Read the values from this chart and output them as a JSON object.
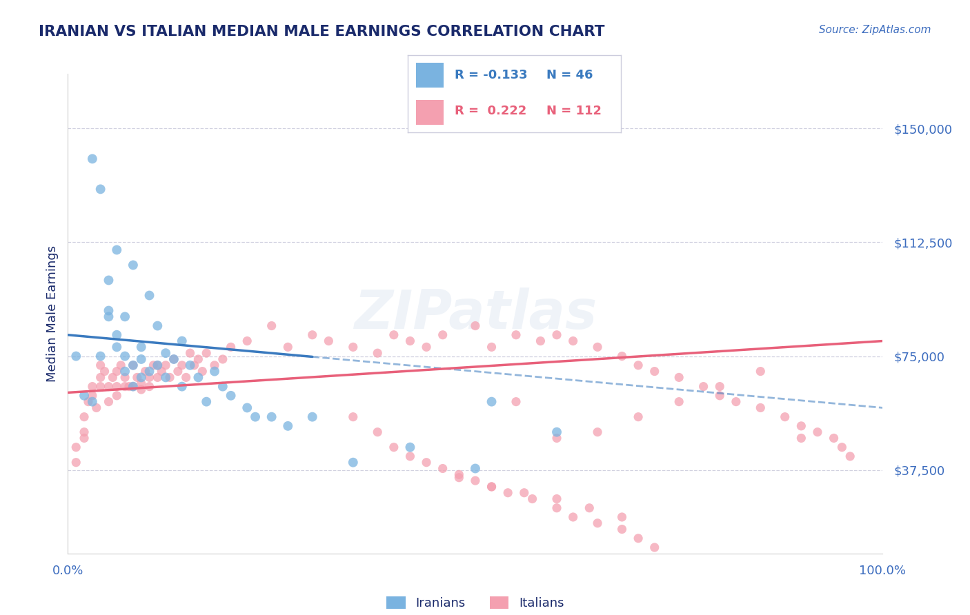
{
  "title": "IRANIAN VS ITALIAN MEDIAN MALE EARNINGS CORRELATION CHART",
  "source_text": "Source: ZipAtlas.com",
  "ylabel": "Median Male Earnings",
  "yticks": [
    37500,
    75000,
    112500,
    150000
  ],
  "ytick_labels": [
    "$37,500",
    "$75,000",
    "$112,500",
    "$150,000"
  ],
  "ylim": [
    10000,
    168000
  ],
  "xlim": [
    0.0,
    1.0
  ],
  "watermark": "ZIPatlas",
  "legend_iranian_r": "-0.133",
  "legend_iranian_n": "46",
  "legend_italian_r": "0.222",
  "legend_italian_n": "112",
  "legend_label_iranian": "Iranians",
  "legend_label_italian": "Italians",
  "color_iranian": "#7ab3e0",
  "color_italian": "#f4a0b0",
  "color_trend_iranian": "#3a7abf",
  "color_trend_italian": "#e8607a",
  "color_title": "#1a2a6b",
  "color_ytick": "#3d6dbf",
  "background_color": "#ffffff",
  "grid_color": "#ccccdd",
  "iranians_x": [
    0.01,
    0.02,
    0.03,
    0.03,
    0.04,
    0.04,
    0.05,
    0.05,
    0.05,
    0.06,
    0.06,
    0.06,
    0.07,
    0.07,
    0.07,
    0.08,
    0.08,
    0.08,
    0.09,
    0.09,
    0.09,
    0.1,
    0.1,
    0.11,
    0.11,
    0.12,
    0.12,
    0.13,
    0.14,
    0.14,
    0.15,
    0.16,
    0.17,
    0.18,
    0.19,
    0.2,
    0.22,
    0.23,
    0.25,
    0.27,
    0.3,
    0.35,
    0.42,
    0.5,
    0.52,
    0.6
  ],
  "iranians_y": [
    75000,
    62000,
    140000,
    60000,
    75000,
    130000,
    88000,
    90000,
    100000,
    78000,
    82000,
    110000,
    70000,
    75000,
    88000,
    65000,
    72000,
    105000,
    68000,
    74000,
    78000,
    70000,
    95000,
    72000,
    85000,
    68000,
    76000,
    74000,
    80000,
    65000,
    72000,
    68000,
    60000,
    70000,
    65000,
    62000,
    58000,
    55000,
    55000,
    52000,
    55000,
    40000,
    45000,
    38000,
    60000,
    50000
  ],
  "italians_x": [
    0.01,
    0.01,
    0.02,
    0.02,
    0.02,
    0.025,
    0.03,
    0.03,
    0.035,
    0.04,
    0.04,
    0.04,
    0.045,
    0.05,
    0.05,
    0.055,
    0.06,
    0.06,
    0.06,
    0.065,
    0.07,
    0.07,
    0.075,
    0.08,
    0.08,
    0.085,
    0.09,
    0.09,
    0.095,
    0.1,
    0.1,
    0.105,
    0.11,
    0.11,
    0.115,
    0.12,
    0.125,
    0.13,
    0.135,
    0.14,
    0.145,
    0.15,
    0.155,
    0.16,
    0.165,
    0.17,
    0.18,
    0.19,
    0.2,
    0.22,
    0.25,
    0.27,
    0.3,
    0.32,
    0.35,
    0.38,
    0.4,
    0.42,
    0.44,
    0.46,
    0.5,
    0.52,
    0.55,
    0.58,
    0.6,
    0.62,
    0.65,
    0.68,
    0.7,
    0.72,
    0.75,
    0.78,
    0.8,
    0.82,
    0.85,
    0.88,
    0.9,
    0.92,
    0.94,
    0.96,
    0.35,
    0.38,
    0.4,
    0.42,
    0.44,
    0.46,
    0.48,
    0.5,
    0.52,
    0.54,
    0.57,
    0.6,
    0.62,
    0.65,
    0.68,
    0.7,
    0.72,
    0.6,
    0.65,
    0.7,
    0.75,
    0.8,
    0.85,
    0.9,
    0.95,
    0.55,
    0.48,
    0.52,
    0.56,
    0.6,
    0.64,
    0.68
  ],
  "italians_y": [
    45000,
    40000,
    55000,
    50000,
    48000,
    60000,
    65000,
    62000,
    58000,
    68000,
    72000,
    65000,
    70000,
    60000,
    65000,
    68000,
    62000,
    65000,
    70000,
    72000,
    65000,
    68000,
    65000,
    72000,
    65000,
    68000,
    64000,
    66000,
    70000,
    65000,
    68000,
    72000,
    68000,
    72000,
    70000,
    72000,
    68000,
    74000,
    70000,
    72000,
    68000,
    76000,
    72000,
    74000,
    70000,
    76000,
    72000,
    74000,
    78000,
    80000,
    85000,
    78000,
    82000,
    80000,
    78000,
    76000,
    82000,
    80000,
    78000,
    82000,
    85000,
    78000,
    82000,
    80000,
    82000,
    80000,
    78000,
    75000,
    72000,
    70000,
    68000,
    65000,
    62000,
    60000,
    58000,
    55000,
    52000,
    50000,
    48000,
    42000,
    55000,
    50000,
    45000,
    42000,
    40000,
    38000,
    36000,
    34000,
    32000,
    30000,
    28000,
    25000,
    22000,
    20000,
    18000,
    15000,
    12000,
    48000,
    50000,
    55000,
    60000,
    65000,
    70000,
    48000,
    45000,
    60000,
    35000,
    32000,
    30000,
    28000,
    25000,
    22000
  ],
  "trend_iran_y0": 82000,
  "trend_iran_y1": 58000,
  "trend_ital_y0": 63000,
  "trend_ital_y1": 80000,
  "trend_iran_solid_end_x": 0.3
}
